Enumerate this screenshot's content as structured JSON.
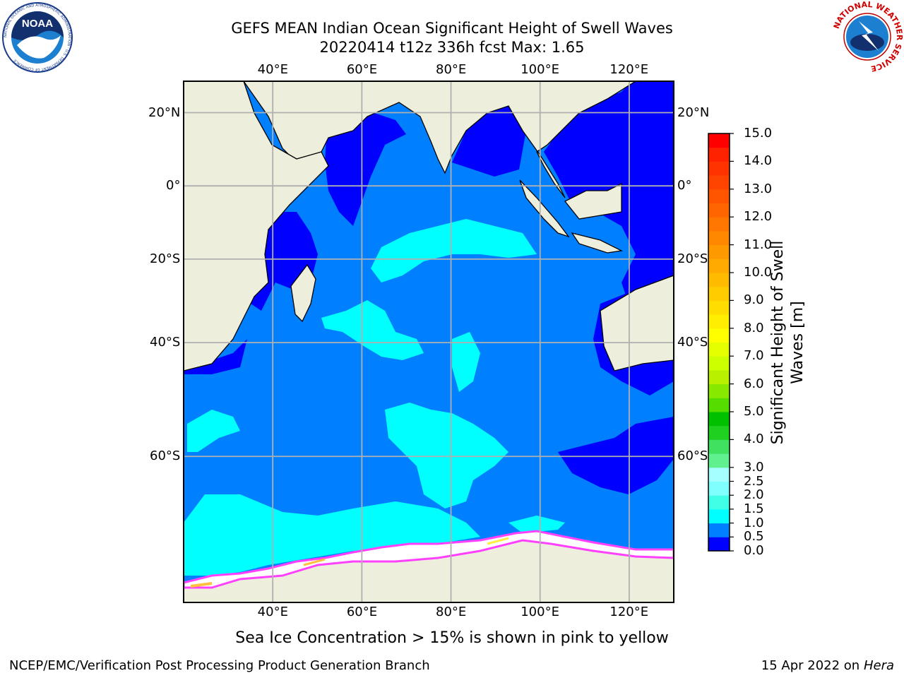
{
  "header": {
    "title_line1": "GEFS MEAN Indian Ocean Significant Height of Swell Waves",
    "title_line2": "20220414 t12z 336h fcst   Max: 1.65"
  },
  "logos": {
    "left": {
      "name": "noaa-logo",
      "text": "NOAA",
      "ring_text": "NATIONAL OCEANIC AND ATMOSPHERIC ADMINISTRATION · U.S. DEPARTMENT OF COMMERCE"
    },
    "right": {
      "name": "nws-logo",
      "ring_text": "NATIONAL WEATHER SERVICE"
    }
  },
  "map": {
    "lon_range": [
      20,
      130
    ],
    "lat_range": [
      -75,
      28
    ],
    "lon_ticks": [
      {
        "value": 40,
        "label": "40°E"
      },
      {
        "value": 60,
        "label": "60°E"
      },
      {
        "value": 80,
        "label": "80°E"
      },
      {
        "value": 100,
        "label": "100°E"
      },
      {
        "value": 120,
        "label": "120°E"
      }
    ],
    "lat_ticks": [
      {
        "value": 20,
        "label": "20°N"
      },
      {
        "value": 0,
        "label": "0°"
      },
      {
        "value": -20,
        "label": "20°S"
      },
      {
        "value": -40,
        "label": "40°S"
      },
      {
        "value": -60,
        "label": "60°S"
      }
    ],
    "grid": true,
    "land_color": "#eeeedc",
    "ice_color": "#ffffff",
    "ocean_base_color": "#0080ff"
  },
  "colorbar": {
    "title": "Significant Height of Swell Waves [m]",
    "levels": [
      "0.0",
      "0.5",
      "1.0",
      "1.5",
      "2.0",
      "2.5",
      "3.0",
      "3.5",
      "4.0",
      "4.5",
      "5.0",
      "5.5",
      "6.0",
      "6.5",
      "7.0",
      "7.5",
      "8.0",
      "8.5",
      "9.0",
      "9.5",
      "10.0",
      "10.5",
      "11.0",
      "11.5",
      "12.0",
      "12.5",
      "13.0",
      "13.5",
      "14.0",
      "14.5",
      "15.0"
    ],
    "labels": [
      "0.0",
      "0.5",
      "1.0",
      "1.5",
      "2.0",
      "2.5",
      "3.0",
      "4.0",
      "5.0",
      "6.0",
      "7.0",
      "8.0",
      "9.0",
      "10.0",
      "11.0",
      "12.0",
      "13.0",
      "14.0",
      "15.0"
    ],
    "colors": [
      "#0000ff",
      "#0080ff",
      "#00ffff",
      "#40ffe6",
      "#80ffff",
      "#a6ffff",
      "#60f090",
      "#40e060",
      "#20d020",
      "#00c000",
      "#55dd00",
      "#88e800",
      "#b8f000",
      "#ccff00",
      "#e6ff00",
      "#ffff00",
      "#ffee00",
      "#ffdd00",
      "#ffcc00",
      "#ffbb00",
      "#ffaa00",
      "#ff9900",
      "#ff8800",
      "#ff7700",
      "#ff6600",
      "#ff5500",
      "#ff4400",
      "#ff3300",
      "#ff2200",
      "#ff0000"
    ]
  },
  "caption": "Sea Ice Concentration > 15% is shown in pink to yellow",
  "footer": {
    "left": "NCEP/EMC/Verification Post Processing Product Generation Branch",
    "right_date": "15 Apr 2022 on ",
    "right_host": "Hera"
  }
}
